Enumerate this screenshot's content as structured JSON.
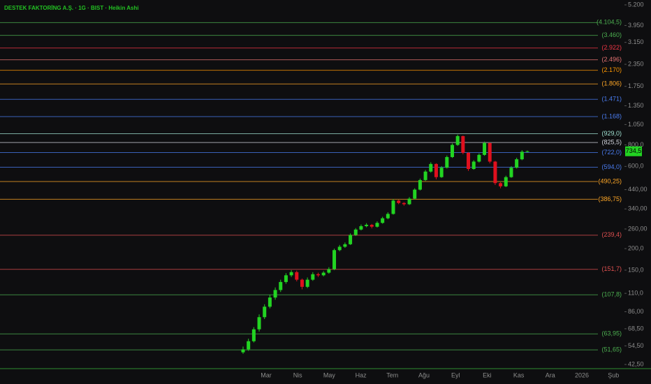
{
  "chart_data": {
    "type": "candlestick",
    "title": "DESTEK FAKTORİNG A.Ş. · 1G · BIST · Heikin Ashi",
    "log_scale": true,
    "categories": [
      "Mar",
      "Nis",
      "May",
      "Haz",
      "Tem",
      "Ağu",
      "Eyl",
      "Eki",
      "Kas",
      "Ara",
      "2026",
      "Şub"
    ],
    "up_color": "#22d422",
    "down_color": "#e0101e",
    "candles": {
      "open": [
        50,
        52,
        58,
        68,
        80,
        92,
        104,
        115,
        128,
        140,
        146,
        132,
        120,
        132,
        142,
        140,
        145,
        152,
        196,
        205,
        212,
        240,
        258,
        270,
        275,
        268,
        282,
        300,
        318,
        380,
        368,
        362,
        390,
        440,
        500,
        560,
        620,
        520,
        590,
        680,
        800,
        900,
        720,
        580,
        640,
        700,
        820,
        640,
        480,
        460,
        520,
        590,
        660,
        730
      ],
      "high": [
        54,
        60,
        70,
        83,
        95,
        108,
        119,
        132,
        144,
        150,
        149,
        134,
        136,
        146,
        145,
        148,
        156,
        200,
        210,
        217,
        245,
        263,
        276,
        281,
        278,
        288,
        306,
        325,
        388,
        384,
        372,
        398,
        448,
        510,
        572,
        634,
        626,
        602,
        694,
        816,
        918,
        906,
        726,
        652,
        714,
        836,
        826,
        646,
        486,
        530,
        602,
        674,
        745,
        742
      ],
      "low": [
        49,
        51,
        57,
        66,
        78,
        90,
        101,
        112,
        125,
        137,
        129,
        116,
        118,
        130,
        137,
        138,
        143,
        150,
        193,
        202,
        210,
        237,
        255,
        266,
        262,
        265,
        279,
        296,
        315,
        362,
        355,
        358,
        386,
        435,
        494,
        552,
        505,
        515,
        584,
        672,
        790,
        705,
        565,
        574,
        632,
        692,
        625,
        468,
        448,
        455,
        515,
        584,
        652,
        725
      ],
      "close": [
        52,
        58,
        68,
        80,
        92,
        104,
        115,
        128,
        140,
        146,
        132,
        120,
        132,
        142,
        140,
        145,
        152,
        196,
        205,
        212,
        240,
        258,
        270,
        275,
        268,
        282,
        300,
        318,
        380,
        368,
        362,
        390,
        440,
        500,
        560,
        620,
        520,
        590,
        680,
        800,
        900,
        720,
        580,
        640,
        700,
        820,
        640,
        480,
        460,
        520,
        590,
        660,
        730,
        735
      ]
    },
    "last_price": {
      "value": 734.5,
      "label": "734,5"
    },
    "ylim": [
      40.2,
      5550
    ],
    "yticks": [
      {
        "value": 5200,
        "label": "5.200"
      },
      {
        "value": 3950,
        "label": "3.950"
      },
      {
        "value": 3150,
        "label": "3.150"
      },
      {
        "value": 2350,
        "label": "2.350"
      },
      {
        "value": 1750,
        "label": "1.750"
      },
      {
        "value": 1350,
        "label": "1.350"
      },
      {
        "value": 1050,
        "label": "1.050"
      },
      {
        "value": 800,
        "label": "800,0"
      },
      {
        "value": 600,
        "label": "600,0"
      },
      {
        "value": 440,
        "label": "440,00"
      },
      {
        "value": 340,
        "label": "340,00"
      },
      {
        "value": 260,
        "label": "260,00"
      },
      {
        "value": 200,
        "label": "200,0"
      },
      {
        "value": 150,
        "label": "150,0"
      },
      {
        "value": 110,
        "label": "110,0"
      },
      {
        "value": 86,
        "label": "86,00"
      },
      {
        "value": 68.5,
        "label": "68,50"
      },
      {
        "value": 54.5,
        "label": "54,50"
      },
      {
        "value": 42.5,
        "label": "42,50"
      }
    ],
    "levels": [
      {
        "value": 4104.5,
        "label": "(4.104,5)",
        "color": "#4caf50"
      },
      {
        "value": 3460,
        "label": "(3.460)",
        "color": "#4caf50"
      },
      {
        "value": 2922,
        "label": "(2.922)",
        "color": "#f23645"
      },
      {
        "value": 2496,
        "label": "(2.496)",
        "color": "#e57373"
      },
      {
        "value": 2170,
        "label": "(2.170)",
        "color": "#ff9800"
      },
      {
        "value": 1806,
        "label": "(1.806)",
        "color": "#ffa726"
      },
      {
        "value": 1471,
        "label": "(1.471)",
        "color": "#4a7cf0"
      },
      {
        "value": 1168,
        "label": "(1.168)",
        "color": "#4a7cf0"
      },
      {
        "value": 929,
        "label": "(929,0)",
        "color": "#9fe0d0"
      },
      {
        "value": 825.5,
        "label": "(825,5)",
        "color": "#d1d4dc"
      },
      {
        "value": 722,
        "label": "(722,0)",
        "color": "#4a7cf0"
      },
      {
        "value": 594,
        "label": "(594,0)",
        "color": "#4a7cf0"
      },
      {
        "value": 490.25,
        "label": "(490,25)",
        "color": "#ffa726"
      },
      {
        "value": 386.75,
        "label": "(386,75)",
        "color": "#ffa726"
      },
      {
        "value": 239.4,
        "label": "(239,4)",
        "color": "#e05050"
      },
      {
        "value": 151.7,
        "label": "(151,7)",
        "color": "#e05050"
      },
      {
        "value": 107.8,
        "label": "(107,8)",
        "color": "#4caf50"
      },
      {
        "value": 63.95,
        "label": "(63,95)",
        "color": "#4caf50"
      },
      {
        "value": 51.65,
        "label": "(51,65)",
        "color": "#4caf50"
      }
    ]
  }
}
